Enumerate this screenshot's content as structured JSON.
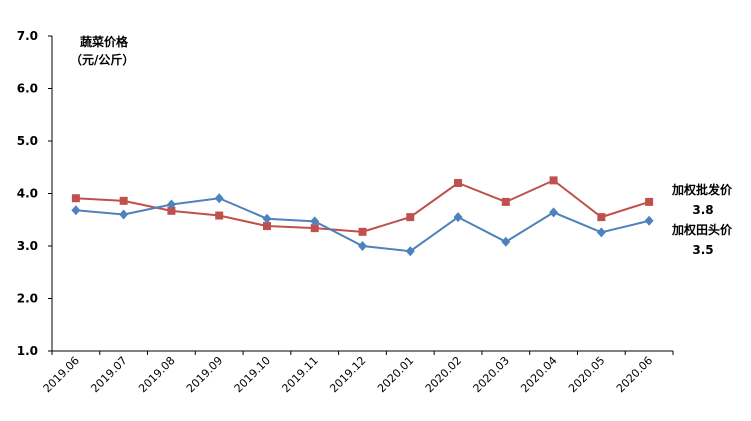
{
  "chart_data": {
    "type": "line",
    "title": "",
    "ylabel_line1": "蔬菜价格",
    "ylabel_line2": "（元/公斤）",
    "xlabel": "",
    "ylim": [
      1.0,
      7.0
    ],
    "yticks": [
      "1.0",
      "2.0",
      "3.0",
      "4.0",
      "5.0",
      "6.0",
      "7.0"
    ],
    "categories": [
      "2019.06",
      "2019.07",
      "2019.08",
      "2019.09",
      "2019.10",
      "2019.11",
      "2019.12",
      "2020.01",
      "2020.02",
      "2020.03",
      "2020.04",
      "2020.05",
      "2020.06"
    ],
    "series": [
      {
        "name": "加权批发价",
        "end_label": "3.8",
        "color": "#c0504d",
        "marker": "square",
        "values": [
          3.91,
          3.86,
          3.67,
          3.58,
          3.38,
          3.34,
          3.27,
          3.55,
          4.2,
          3.84,
          4.25,
          3.55,
          3.84
        ]
      },
      {
        "name": "加权田头价",
        "end_label": "3.5",
        "color": "#4f81bd",
        "marker": "diamond",
        "values": [
          3.68,
          3.6,
          3.79,
          3.91,
          3.52,
          3.47,
          3.0,
          2.9,
          3.55,
          3.08,
          3.64,
          3.26,
          3.48
        ]
      }
    ],
    "grid": false,
    "legend": "right (inline labels)"
  }
}
